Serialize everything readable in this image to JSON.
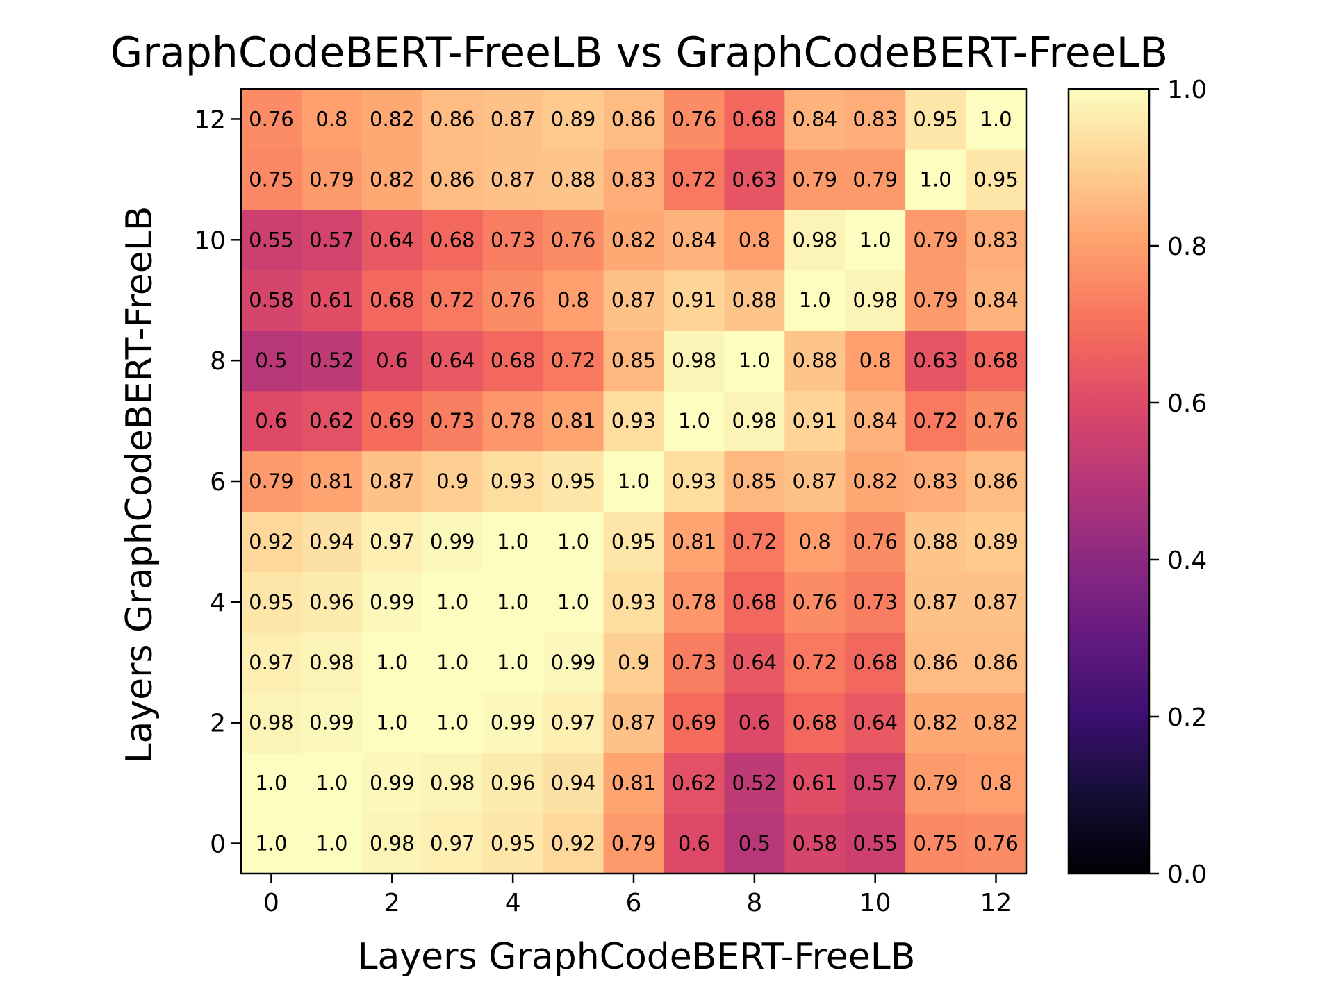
{
  "chart_data": {
    "type": "heatmap",
    "title": "GraphCodeBERT-FreeLB vs GraphCodeBERT-FreeLB",
    "xlabel": "Layers GraphCodeBERT-FreeLB",
    "ylabel": "Layers GraphCodeBERT-FreeLB",
    "x_ticks": [
      "0",
      "2",
      "4",
      "6",
      "8",
      "10",
      "12"
    ],
    "y_ticks": [
      "0",
      "2",
      "4",
      "6",
      "8",
      "10",
      "12"
    ],
    "x_tick_values": [
      0,
      2,
      4,
      6,
      8,
      10,
      12
    ],
    "y_tick_values": [
      0,
      2,
      4,
      6,
      8,
      10,
      12
    ],
    "x": [
      0,
      1,
      2,
      3,
      4,
      5,
      6,
      7,
      8,
      9,
      10,
      11,
      12
    ],
    "y": [
      0,
      1,
      2,
      3,
      4,
      5,
      6,
      7,
      8,
      9,
      10,
      11,
      12
    ],
    "values": [
      [
        1.0,
        1.0,
        0.98,
        0.97,
        0.95,
        0.92,
        0.79,
        0.6,
        0.5,
        0.58,
        0.55,
        0.75,
        0.76
      ],
      [
        1.0,
        1.0,
        0.99,
        0.98,
        0.96,
        0.94,
        0.81,
        0.62,
        0.52,
        0.61,
        0.57,
        0.79,
        0.8
      ],
      [
        0.98,
        0.99,
        1.0,
        1.0,
        0.99,
        0.97,
        0.87,
        0.69,
        0.6,
        0.68,
        0.64,
        0.82,
        0.82
      ],
      [
        0.97,
        0.98,
        1.0,
        1.0,
        1.0,
        0.99,
        0.9,
        0.73,
        0.64,
        0.72,
        0.68,
        0.86,
        0.86
      ],
      [
        0.95,
        0.96,
        0.99,
        1.0,
        1.0,
        1.0,
        0.93,
        0.78,
        0.68,
        0.76,
        0.73,
        0.87,
        0.87
      ],
      [
        0.92,
        0.94,
        0.97,
        0.99,
        1.0,
        1.0,
        0.95,
        0.81,
        0.72,
        0.8,
        0.76,
        0.88,
        0.89
      ],
      [
        0.79,
        0.81,
        0.87,
        0.9,
        0.93,
        0.95,
        1.0,
        0.93,
        0.85,
        0.87,
        0.82,
        0.83,
        0.86
      ],
      [
        0.6,
        0.62,
        0.69,
        0.73,
        0.78,
        0.81,
        0.93,
        1.0,
        0.98,
        0.91,
        0.84,
        0.72,
        0.76
      ],
      [
        0.5,
        0.52,
        0.6,
        0.64,
        0.68,
        0.72,
        0.85,
        0.98,
        1.0,
        0.88,
        0.8,
        0.63,
        0.68
      ],
      [
        0.58,
        0.61,
        0.68,
        0.72,
        0.76,
        0.8,
        0.87,
        0.91,
        0.88,
        1.0,
        0.98,
        0.79,
        0.84
      ],
      [
        0.55,
        0.57,
        0.64,
        0.68,
        0.73,
        0.76,
        0.82,
        0.84,
        0.8,
        0.98,
        1.0,
        0.79,
        0.83
      ],
      [
        0.75,
        0.79,
        0.82,
        0.86,
        0.87,
        0.88,
        0.83,
        0.72,
        0.63,
        0.79,
        0.79,
        1.0,
        0.95
      ],
      [
        0.76,
        0.8,
        0.82,
        0.86,
        0.87,
        0.89,
        0.86,
        0.76,
        0.68,
        0.84,
        0.83,
        0.95,
        1.0
      ]
    ],
    "cell_labels": [
      [
        "1.0",
        "1.0",
        "0.98",
        "0.97",
        "0.95",
        "0.92",
        "0.79",
        "0.6",
        "0.5",
        "0.58",
        "0.55",
        "0.75",
        "0.76"
      ],
      [
        "1.0",
        "1.0",
        "0.99",
        "0.98",
        "0.96",
        "0.94",
        "0.81",
        "0.62",
        "0.52",
        "0.61",
        "0.57",
        "0.79",
        "0.8"
      ],
      [
        "0.98",
        "0.99",
        "1.0",
        "1.0",
        "0.99",
        "0.97",
        "0.87",
        "0.69",
        "0.6",
        "0.68",
        "0.64",
        "0.82",
        "0.82"
      ],
      [
        "0.97",
        "0.98",
        "1.0",
        "1.0",
        "1.0",
        "0.99",
        "0.9",
        "0.73",
        "0.64",
        "0.72",
        "0.68",
        "0.86",
        "0.86"
      ],
      [
        "0.95",
        "0.96",
        "0.99",
        "1.0",
        "1.0",
        "1.0",
        "0.93",
        "0.78",
        "0.68",
        "0.76",
        "0.73",
        "0.87",
        "0.87"
      ],
      [
        "0.92",
        "0.94",
        "0.97",
        "0.99",
        "1.0",
        "1.0",
        "0.95",
        "0.81",
        "0.72",
        "0.8",
        "0.76",
        "0.88",
        "0.89"
      ],
      [
        "0.79",
        "0.81",
        "0.87",
        "0.9",
        "0.93",
        "0.95",
        "1.0",
        "0.93",
        "0.85",
        "0.87",
        "0.82",
        "0.83",
        "0.86"
      ],
      [
        "0.6",
        "0.62",
        "0.69",
        "0.73",
        "0.78",
        "0.81",
        "0.93",
        "1.0",
        "0.98",
        "0.91",
        "0.84",
        "0.72",
        "0.76"
      ],
      [
        "0.5",
        "0.52",
        "0.6",
        "0.64",
        "0.68",
        "0.72",
        "0.85",
        "0.98",
        "1.0",
        "0.88",
        "0.8",
        "0.63",
        "0.68"
      ],
      [
        "0.58",
        "0.61",
        "0.68",
        "0.72",
        "0.76",
        "0.8",
        "0.87",
        "0.91",
        "0.88",
        "1.0",
        "0.98",
        "0.79",
        "0.84"
      ],
      [
        "0.55",
        "0.57",
        "0.64",
        "0.68",
        "0.73",
        "0.76",
        "0.82",
        "0.84",
        "0.8",
        "0.98",
        "1.0",
        "0.79",
        "0.83"
      ],
      [
        "0.75",
        "0.79",
        "0.82",
        "0.86",
        "0.87",
        "0.88",
        "0.83",
        "0.72",
        "0.63",
        "0.79",
        "0.79",
        "1.0",
        "0.95"
      ],
      [
        "0.76",
        "0.8",
        "0.82",
        "0.86",
        "0.87",
        "0.89",
        "0.86",
        "0.76",
        "0.68",
        "0.84",
        "0.83",
        "0.95",
        "1.0"
      ]
    ],
    "colorbar": {
      "colormap": "magma",
      "vmin": 0.0,
      "vmax": 1.0,
      "ticks": [
        "0.0",
        "0.2",
        "0.4",
        "0.6",
        "0.8",
        "1.0"
      ],
      "tick_values": [
        0.0,
        0.2,
        0.4,
        0.6,
        0.8,
        1.0
      ]
    },
    "grid": false,
    "origin": "lower"
  }
}
